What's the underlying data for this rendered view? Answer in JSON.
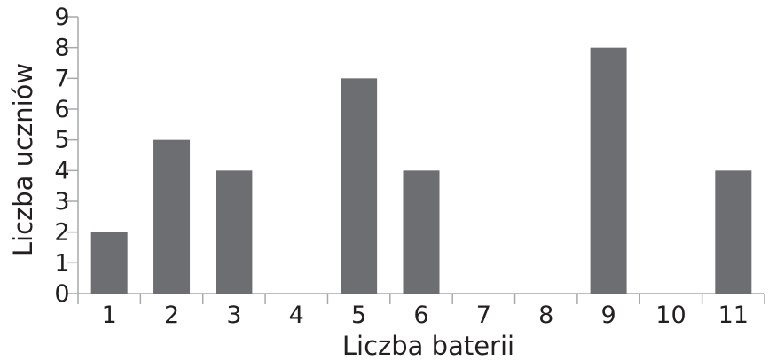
{
  "chart_data": {
    "type": "bar",
    "categories": [
      "1",
      "2",
      "3",
      "4",
      "5",
      "6",
      "7",
      "8",
      "9",
      "10",
      "11"
    ],
    "values": [
      2,
      5,
      4,
      0,
      7,
      4,
      0,
      0,
      8,
      0,
      4
    ],
    "xlabel": "Liczba baterii",
    "ylabel": "Liczba uczniów",
    "ylim": [
      0,
      9
    ],
    "yticks": [
      "0",
      "1",
      "2",
      "3",
      "4",
      "5",
      "6",
      "7",
      "8",
      "9"
    ],
    "grid": false,
    "legend": "none",
    "bar_color": "#6d6e71",
    "axis_color": "#a7a9ac",
    "text_color": "#231f20"
  }
}
